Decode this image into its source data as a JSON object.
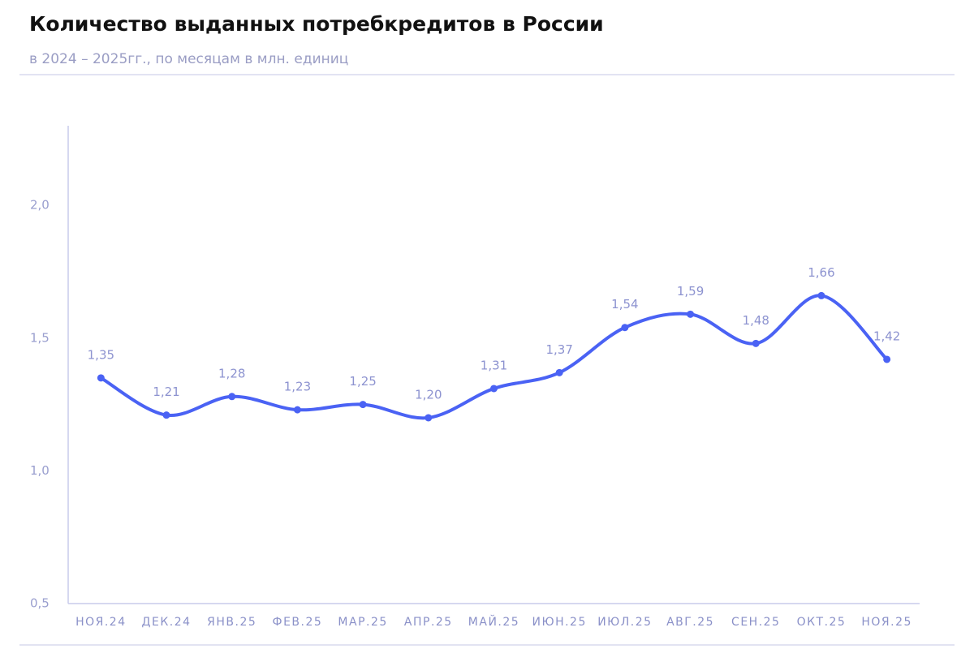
{
  "chart_data": {
    "type": "line",
    "title": "Количество выданных потребкредитов в России",
    "subtitle": "в 2024 – 2025гг., по месяцам в млн. единиц",
    "categories": [
      "НОЯ.24",
      "ДЕК.24",
      "ЯНВ.25",
      "ФЕВ.25",
      "МАР.25",
      "АПР.25",
      "МАЙ.25",
      "ИЮН.25",
      "ИЮЛ.25",
      "АВГ.25",
      "СЕН.25",
      "ОКТ.25",
      "НОЯ.25"
    ],
    "values": [
      1.35,
      1.21,
      1.28,
      1.23,
      1.25,
      1.2,
      1.31,
      1.37,
      1.54,
      1.59,
      1.48,
      1.66,
      1.42
    ],
    "value_labels": [
      "1,35",
      "1,21",
      "1,28",
      "1,23",
      "1,25",
      "1,20",
      "1,31",
      "1,37",
      "1,54",
      "1,59",
      "1,48",
      "1,66",
      "1,42"
    ],
    "color": "#4a62f4",
    "ylim": [
      0.5,
      2.3
    ],
    "yticks": [
      {
        "value": 0.5,
        "label": "0,5"
      },
      {
        "value": 1.0,
        "label": "1,0"
      },
      {
        "value": 1.5,
        "label": "1,5"
      },
      {
        "value": 2.0,
        "label": "2,0"
      }
    ],
    "grid": false
  }
}
